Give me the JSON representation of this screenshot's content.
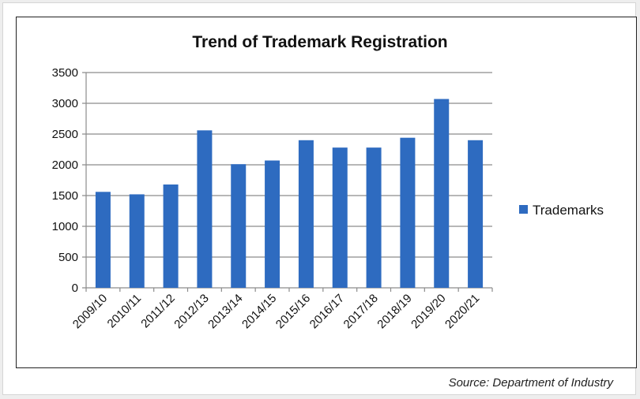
{
  "chart_data": {
    "type": "bar",
    "title": "Trend of Trademark Registration",
    "categories": [
      "2009/10",
      "2010/11",
      "2011/12",
      "2012/13",
      "2013/14",
      "2014/15",
      "2015/16",
      "2016/17",
      "2017/18",
      "2018/19",
      "2019/20",
      "2020/21"
    ],
    "series": [
      {
        "name": "Trademarks",
        "values": [
          1560,
          1520,
          1680,
          2560,
          2010,
          2070,
          2400,
          2280,
          2280,
          2440,
          3070,
          2400
        ],
        "color": "#2e6bc0"
      }
    ],
    "ylim": [
      0,
      3500
    ],
    "yticks": [
      0,
      500,
      1000,
      1500,
      2000,
      2500,
      3000,
      3500
    ],
    "xlabel": "",
    "ylabel": "",
    "grid": true,
    "legend_position": "right"
  },
  "source_note": "Source: Department of Industry"
}
